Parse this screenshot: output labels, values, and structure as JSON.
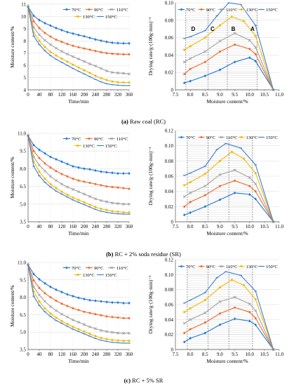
{
  "captions": [
    {
      "tag": "(a)",
      "text": "Raw coal (RC)"
    },
    {
      "tag": "(b)",
      "text": "RC + 2% soda residue (SR)"
    },
    {
      "tag": "(c)",
      "text": "RC + 5% SR"
    }
  ],
  "colors": {
    "70": "#1f77d4",
    "90": "#f06a28",
    "110": "#a0a0a0",
    "130": "#f2b800",
    "150": "#3f7fd0"
  },
  "chart_data": [
    {
      "id": "a-left",
      "type": "line",
      "ylabel": "Moisture content/%",
      "xlabel": "Time/min",
      "xlim": [
        0,
        360
      ],
      "ylim": [
        4,
        11
      ],
      "xticks": [
        0,
        40,
        80,
        120,
        160,
        200,
        240,
        280,
        320,
        360
      ],
      "yticks": [
        4,
        5,
        6,
        7,
        8,
        9,
        10,
        11
      ],
      "ytick_decimals": 0,
      "legend": [
        "70°C",
        "90°C",
        "110°C",
        "130°C",
        "150°C"
      ],
      "legend_placement": "top-right",
      "x": [
        0,
        20,
        40,
        60,
        80,
        100,
        120,
        140,
        160,
        180,
        200,
        220,
        240,
        260,
        280,
        300,
        320,
        340,
        360
      ],
      "series": [
        {
          "name": "70°C",
          "values": [
            10.8,
            10.05,
            9.7,
            9.45,
            9.25,
            9.05,
            8.88,
            8.72,
            8.6,
            8.48,
            8.38,
            8.25,
            8.12,
            8.02,
            7.92,
            7.85,
            7.82,
            7.8,
            7.8
          ]
        },
        {
          "name": "90°C",
          "values": [
            10.8,
            9.6,
            9.05,
            8.65,
            8.35,
            8.1,
            7.92,
            7.75,
            7.6,
            7.48,
            7.38,
            7.28,
            7.18,
            7.08,
            7.0,
            6.95,
            6.92,
            6.9,
            6.9
          ]
        },
        {
          "name": "110°C",
          "values": [
            10.8,
            9.1,
            8.5,
            8.05,
            7.7,
            7.4,
            7.15,
            6.92,
            6.72,
            6.52,
            6.32,
            6.12,
            5.95,
            5.75,
            5.55,
            5.42,
            5.38,
            5.35,
            5.3
          ]
        },
        {
          "name": "130°C",
          "values": [
            10.8,
            8.7,
            8.0,
            7.5,
            7.1,
            6.8,
            6.55,
            6.3,
            6.05,
            5.82,
            5.6,
            5.38,
            5.15,
            4.95,
            4.8,
            4.68,
            4.62,
            4.6,
            4.6
          ]
        },
        {
          "name": "150°C",
          "values": [
            10.8,
            8.4,
            7.7,
            7.2,
            6.8,
            6.5,
            6.25,
            6.0,
            5.75,
            5.52,
            5.3,
            5.08,
            4.85,
            4.65,
            4.5,
            4.42,
            4.38,
            4.35,
            4.35
          ]
        }
      ]
    },
    {
      "id": "a-right",
      "type": "line",
      "ylabel": "Drying rate/g·(100g·min)⁻¹",
      "xlabel": "Moisture content/%",
      "xlim": [
        7.5,
        11
      ],
      "ylim": [
        0,
        0.1
      ],
      "xticks": [
        7.5,
        8.0,
        8.5,
        9.0,
        9.5,
        10.0,
        10.5,
        11.0
      ],
      "yticks": [
        0,
        0.02,
        0.04,
        0.06,
        0.08,
        0.1
      ],
      "legend": [
        "70°C",
        "90°C",
        "110°C",
        "130°C",
        "150°C"
      ],
      "legend_placement": "top",
      "region_labels": [
        {
          "text": "D",
          "x": 8.1
        },
        {
          "text": "C",
          "x": 8.75
        },
        {
          "text": "B",
          "x": 9.45
        },
        {
          "text": "A",
          "x": 10.1
        }
      ],
      "dividers": [
        7.85,
        8.6,
        9.25,
        10.25
      ],
      "series": [
        {
          "name": "70°C",
          "x": [
            7.8,
            8.0,
            8.5,
            9.0,
            9.5,
            10.0,
            10.2,
            10.8
          ],
          "values": [
            0.008,
            0.01,
            0.016,
            0.023,
            0.032,
            0.037,
            0.033,
            0.0
          ]
        },
        {
          "name": "90°C",
          "x": [
            7.8,
            8.0,
            8.5,
            9.0,
            9.5,
            10.0,
            10.2,
            10.8
          ],
          "values": [
            0.018,
            0.024,
            0.032,
            0.044,
            0.052,
            0.047,
            0.041,
            0.0
          ]
        },
        {
          "name": "110°C",
          "x": [
            7.8,
            8.0,
            8.5,
            9.0,
            9.5,
            10.0,
            10.2,
            10.8
          ],
          "values": [
            0.032,
            0.036,
            0.044,
            0.056,
            0.065,
            0.057,
            0.049,
            0.0
          ]
        },
        {
          "name": "130°C",
          "x": [
            7.8,
            8.0,
            8.5,
            9.0,
            9.4,
            9.8,
            10.2,
            10.8
          ],
          "values": [
            0.046,
            0.05,
            0.06,
            0.074,
            0.084,
            0.079,
            0.062,
            0.0
          ]
        },
        {
          "name": "150°C",
          "x": [
            7.8,
            8.0,
            8.5,
            8.9,
            9.3,
            9.7,
            10.2,
            10.8
          ],
          "values": [
            0.059,
            0.061,
            0.068,
            0.085,
            0.1,
            0.098,
            0.074,
            0.0
          ]
        }
      ]
    },
    {
      "id": "b-left",
      "type": "line",
      "ylabel": "Moisture content/%",
      "xlabel": "Time/min",
      "xlim": [
        0,
        360
      ],
      "ylim": [
        3.5,
        11
      ],
      "xticks": [
        0,
        40,
        80,
        120,
        160,
        200,
        240,
        280,
        320,
        360
      ],
      "yticks": [
        3.5,
        5.0,
        6.5,
        8.0,
        9.5,
        11.0
      ],
      "ytick_decimals": 1,
      "legend": [
        "70°C",
        "90°C",
        "110°C",
        "130°C",
        "150°C"
      ],
      "legend_placement": "top-right",
      "x": [
        0,
        20,
        40,
        60,
        80,
        100,
        120,
        140,
        160,
        180,
        200,
        220,
        240,
        260,
        280,
        300,
        320,
        340,
        360
      ],
      "series": [
        {
          "name": "70°C",
          "values": [
            10.8,
            10.0,
            9.6,
            9.3,
            9.0,
            8.8,
            8.6,
            8.4,
            8.2,
            8.1,
            8.0,
            7.95,
            7.85,
            7.75,
            7.7,
            7.65,
            7.6,
            7.6,
            7.6
          ]
        },
        {
          "name": "90°C",
          "values": [
            10.8,
            9.5,
            8.9,
            8.45,
            8.1,
            7.8,
            7.55,
            7.35,
            7.15,
            7.0,
            6.9,
            6.8,
            6.7,
            6.6,
            6.5,
            6.45,
            6.4,
            6.35,
            6.3
          ]
        },
        {
          "name": "110°C",
          "values": [
            10.8,
            9.0,
            8.3,
            7.8,
            7.35,
            7.0,
            6.7,
            6.45,
            6.25,
            6.05,
            5.85,
            5.65,
            5.45,
            5.3,
            5.2,
            5.1,
            5.05,
            5.0,
            5.0
          ]
        },
        {
          "name": "130°C",
          "values": [
            10.8,
            8.6,
            7.75,
            7.15,
            6.7,
            6.35,
            6.05,
            5.8,
            5.55,
            5.35,
            5.15,
            4.95,
            4.75,
            4.6,
            4.5,
            4.4,
            4.35,
            4.3,
            4.3
          ]
        },
        {
          "name": "150°C",
          "values": [
            10.8,
            8.2,
            7.4,
            6.85,
            6.45,
            6.1,
            5.85,
            5.6,
            5.35,
            5.15,
            4.95,
            4.75,
            4.55,
            4.4,
            4.3,
            4.22,
            4.18,
            4.15,
            4.15
          ]
        }
      ]
    },
    {
      "id": "b-right",
      "type": "line",
      "ylabel": "Drying rate/g·(100g·min)⁻¹",
      "xlabel": "Moisture content/%",
      "xlim": [
        7.5,
        11
      ],
      "ylim": [
        0,
        0.12
      ],
      "xticks": [
        7.5,
        8.0,
        8.5,
        9.0,
        9.5,
        10.0,
        10.5,
        11.0
      ],
      "yticks": [
        0,
        0.02,
        0.04,
        0.06,
        0.08,
        0.1,
        0.12
      ],
      "legend": [
        "70°C",
        "90°C",
        "110°C",
        "130°C",
        "150°C"
      ],
      "legend_placement": "top",
      "region_labels": [],
      "dividers": [
        7.9,
        8.6,
        9.3,
        10.1
      ],
      "series": [
        {
          "name": "70°C",
          "x": [
            7.8,
            8.0,
            8.5,
            9.0,
            9.5,
            10.0,
            10.2,
            10.8
          ],
          "values": [
            0.009,
            0.012,
            0.02,
            0.029,
            0.038,
            0.036,
            0.03,
            0.0
          ]
        },
        {
          "name": "90°C",
          "x": [
            7.8,
            8.0,
            8.5,
            9.0,
            9.5,
            10.0,
            10.2,
            10.8
          ],
          "values": [
            0.02,
            0.026,
            0.035,
            0.047,
            0.054,
            0.047,
            0.04,
            0.0
          ]
        },
        {
          "name": "110°C",
          "x": [
            7.8,
            8.0,
            8.5,
            9.0,
            9.5,
            10.0,
            10.2,
            10.8
          ],
          "values": [
            0.033,
            0.038,
            0.047,
            0.062,
            0.068,
            0.058,
            0.05,
            0.0
          ]
        },
        {
          "name": "130°C",
          "x": [
            7.8,
            8.0,
            8.5,
            9.0,
            9.4,
            9.8,
            10.2,
            10.8
          ],
          "values": [
            0.048,
            0.052,
            0.063,
            0.08,
            0.092,
            0.083,
            0.064,
            0.0
          ]
        },
        {
          "name": "150°C",
          "x": [
            7.8,
            8.0,
            8.5,
            8.9,
            9.2,
            9.7,
            10.2,
            10.8
          ],
          "values": [
            0.061,
            0.064,
            0.073,
            0.095,
            0.103,
            0.097,
            0.075,
            0.0
          ]
        }
      ]
    },
    {
      "id": "c-left",
      "type": "line",
      "ylabel": "Moisture content/%",
      "xlabel": "Time/min",
      "xlim": [
        0,
        360
      ],
      "ylim": [
        3.5,
        11
      ],
      "xticks": [
        0,
        40,
        80,
        120,
        160,
        200,
        240,
        280,
        320,
        360
      ],
      "yticks": [
        3.5,
        5.0,
        6.5,
        8.0,
        9.5,
        11.0
      ],
      "ytick_decimals": 1,
      "legend": [
        "70°C",
        "90°C",
        "110°C",
        "130°C",
        "150°C"
      ],
      "legend_placement": "top-right",
      "x": [
        0,
        20,
        40,
        60,
        80,
        100,
        120,
        140,
        160,
        180,
        200,
        220,
        240,
        260,
        280,
        300,
        320,
        340,
        360
      ],
      "series": [
        {
          "name": "70°C",
          "values": [
            10.8,
            10.0,
            9.55,
            9.2,
            8.9,
            8.65,
            8.45,
            8.25,
            8.1,
            7.95,
            7.85,
            7.75,
            7.7,
            7.65,
            7.6,
            7.55,
            7.55,
            7.5,
            7.5
          ]
        },
        {
          "name": "90°C",
          "values": [
            10.8,
            9.45,
            8.8,
            8.35,
            8.0,
            7.7,
            7.45,
            7.25,
            7.05,
            6.9,
            6.75,
            6.65,
            6.55,
            6.45,
            6.35,
            6.3,
            6.25,
            6.2,
            6.2
          ]
        },
        {
          "name": "110°C",
          "values": [
            10.8,
            8.9,
            8.2,
            7.65,
            7.2,
            6.85,
            6.55,
            6.3,
            6.05,
            5.85,
            5.65,
            5.45,
            5.3,
            5.15,
            5.05,
            4.98,
            4.92,
            4.9,
            4.9
          ]
        },
        {
          "name": "130°C",
          "values": [
            10.8,
            8.5,
            7.65,
            7.05,
            6.6,
            6.25,
            5.95,
            5.7,
            5.45,
            5.25,
            5.05,
            4.85,
            4.65,
            4.5,
            4.4,
            4.32,
            4.28,
            4.25,
            4.25
          ]
        },
        {
          "name": "150°C",
          "values": [
            10.8,
            8.1,
            7.3,
            6.75,
            6.35,
            6.0,
            5.75,
            5.5,
            5.25,
            5.05,
            4.85,
            4.65,
            4.45,
            4.3,
            4.2,
            4.12,
            4.08,
            4.05,
            4.05
          ]
        }
      ]
    },
    {
      "id": "c-right",
      "type": "line",
      "ylabel": "Drying rate/g·(100g·min)⁻¹",
      "xlabel": "Moisture content/%",
      "xlim": [
        7.5,
        11
      ],
      "ylim": [
        0,
        0.12
      ],
      "xticks": [
        7.5,
        8.0,
        8.5,
        9.0,
        9.5,
        10.0,
        10.5,
        11.0
      ],
      "yticks": [
        0,
        0.02,
        0.04,
        0.06,
        0.08,
        0.1,
        0.12
      ],
      "legend": [
        "70°C",
        "90°C",
        "110°C",
        "130°C",
        "150°C"
      ],
      "legend_placement": "top",
      "region_labels": [],
      "dividers": [
        7.9,
        8.6,
        9.3,
        10.1
      ],
      "series": [
        {
          "name": "70°C",
          "x": [
            7.8,
            8.0,
            8.5,
            9.0,
            9.5,
            10.0,
            10.2,
            10.8
          ],
          "values": [
            0.01,
            0.015,
            0.022,
            0.033,
            0.041,
            0.038,
            0.033,
            0.0
          ]
        },
        {
          "name": "90°C",
          "x": [
            7.8,
            8.0,
            8.5,
            9.0,
            9.5,
            10.0,
            10.2,
            10.8
          ],
          "values": [
            0.022,
            0.027,
            0.036,
            0.048,
            0.056,
            0.05,
            0.042,
            0.0
          ]
        },
        {
          "name": "110°C",
          "x": [
            7.8,
            8.0,
            8.5,
            9.0,
            9.5,
            10.0,
            10.2,
            10.8
          ],
          "values": [
            0.035,
            0.04,
            0.049,
            0.064,
            0.07,
            0.061,
            0.052,
            0.0
          ]
        },
        {
          "name": "130°C",
          "x": [
            7.8,
            8.0,
            8.5,
            9.0,
            9.4,
            9.8,
            10.2,
            10.8
          ],
          "values": [
            0.05,
            0.055,
            0.066,
            0.083,
            0.093,
            0.086,
            0.067,
            0.0
          ]
        },
        {
          "name": "150°C",
          "x": [
            7.8,
            8.0,
            8.5,
            8.9,
            9.2,
            9.7,
            10.2,
            10.8
          ],
          "values": [
            0.062,
            0.066,
            0.076,
            0.096,
            0.104,
            0.099,
            0.078,
            0.0
          ]
        }
      ]
    }
  ]
}
